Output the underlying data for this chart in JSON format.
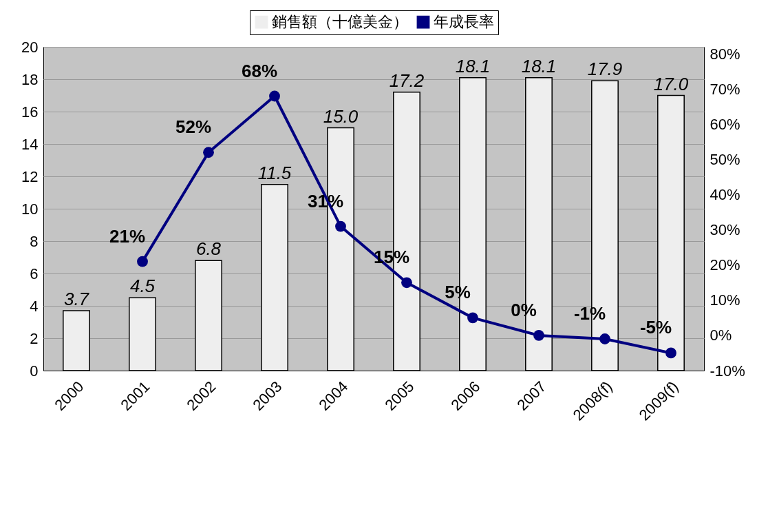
{
  "chart_data": {
    "type": "bar",
    "categories": [
      "2000",
      "2001",
      "2002",
      "2003",
      "2004",
      "2005",
      "2006",
      "2007",
      "2008(f)",
      "2009(f)"
    ],
    "series": [
      {
        "name": "銷售額（十億美金）",
        "color": "#eeeeee",
        "values": [
          3.7,
          4.5,
          6.8,
          11.5,
          15.0,
          17.2,
          18.1,
          18.1,
          17.9,
          17.0
        ],
        "value_labels": [
          "3.7",
          "4.5",
          "6.8",
          "11.5",
          "15.0",
          "17.2",
          "18.1",
          "18.1",
          "17.9",
          "17.0"
        ]
      },
      {
        "name": "年成長率",
        "type": "line",
        "axis": "y2",
        "color": "#000080",
        "values": [
          null,
          21,
          52,
          68,
          31,
          15,
          5,
          0,
          -1,
          -5
        ],
        "value_labels": [
          null,
          "21%",
          "52%",
          "68%",
          "31%",
          "15%",
          "5%",
          "0%",
          "-1%",
          "-5%"
        ]
      }
    ],
    "ylim": [
      0,
      20
    ],
    "yticks": [
      0,
      2,
      4,
      6,
      8,
      10,
      12,
      14,
      16,
      18,
      20
    ],
    "y2lim": [
      -10,
      82
    ],
    "y2ticks": [
      {
        "value": -10,
        "label": "-10%"
      },
      {
        "value": 0,
        "label": "0%"
      },
      {
        "value": 10,
        "label": "10%"
      },
      {
        "value": 20,
        "label": "20%"
      },
      {
        "value": 30,
        "label": "30%"
      },
      {
        "value": 40,
        "label": "40%"
      },
      {
        "value": 50,
        "label": "50%"
      },
      {
        "value": 60,
        "label": "60%"
      },
      {
        "value": 70,
        "label": "70%"
      },
      {
        "value": 80,
        "label": "80%"
      }
    ],
    "grid": "y",
    "legend": "top",
    "marker": "circle",
    "line_style": "solid"
  }
}
